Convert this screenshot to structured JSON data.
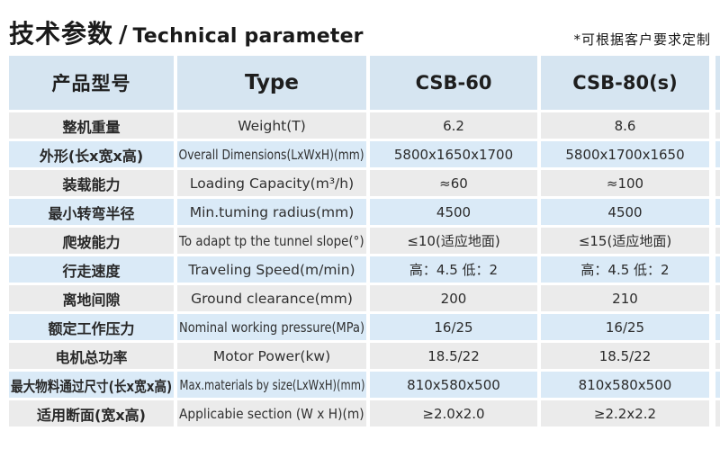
{
  "title": {
    "zh": "技术参数",
    "sep": "/",
    "en": "Technical parameter"
  },
  "note": "*可根据客户要求定制",
  "table": {
    "header": {
      "product_label": "产品型号",
      "type_label": "Type",
      "models": [
        "CSB-60",
        "CSB-80(s)"
      ]
    },
    "rows": [
      {
        "zh": "整机重量",
        "en": "Weight(T)",
        "csb60": "6.2",
        "csb80": "8.6"
      },
      {
        "zh": "外形(长x宽x高)",
        "en": "Overall Dimensions(LxWxH)(mm)",
        "csb60": "5800x1650x1700",
        "csb80": "5800x1700x1650"
      },
      {
        "zh": "装载能力",
        "en": "Loading Capacity(m³/h)",
        "csb60": "≈60",
        "csb80": "≈100"
      },
      {
        "zh": "最小转弯半径",
        "en": "Min.tuming radius(mm)",
        "csb60": "4500",
        "csb80": "4500"
      },
      {
        "zh": "爬坡能力",
        "en": "To adapt tp the tunnel slope(°)",
        "csb60": "≤10(适应地面)",
        "csb80": "≤15(适应地面)"
      },
      {
        "zh": "行走速度",
        "en": "Traveling Speed(m/min)",
        "csb60": "高：4.5 低：2",
        "csb80": "高：4.5 低：2"
      },
      {
        "zh": "离地间隙",
        "en": "Ground clearance(mm)",
        "csb60": "200",
        "csb80": "210"
      },
      {
        "zh": "额定工作压力",
        "en": "Nominal working pressure(MPa)",
        "csb60": "16/25",
        "csb80": "16/25"
      },
      {
        "zh": "电机总功率",
        "en": "Motor Power(kw)",
        "csb60": "18.5/22",
        "csb80": "18.5/22"
      },
      {
        "zh": "最大物料通过尺寸(长x宽x高)",
        "en": "Max.materials by size(LxWxH)(mm)",
        "csb60": "810x580x500",
        "csb80": "810x580x500"
      },
      {
        "zh": "适用断面(宽x高)",
        "en": "Applicabie section (W x H)(m)",
        "csb60": "≥2.0x2.0",
        "csb80": "≥2.2x2.2"
      }
    ]
  },
  "colors": {
    "header_bg": "#d6e5f1",
    "row_blue": "#daeaf7",
    "row_gray": "#ebebeb",
    "text": "#2d2d2d",
    "title_text": "#1a1a1a"
  }
}
